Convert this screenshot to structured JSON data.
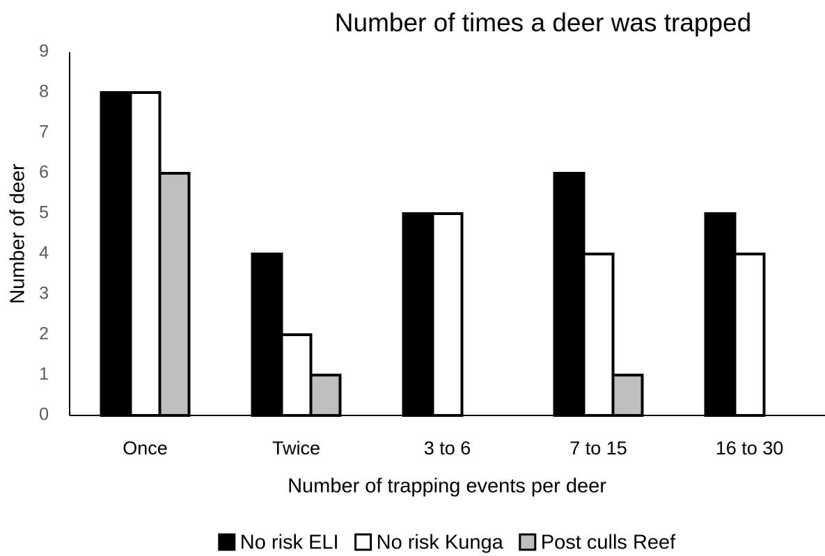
{
  "chart_data": {
    "type": "bar",
    "title": "Number of times a deer was trapped",
    "x_label": "Number of trapping events per deer",
    "y_label": "Number of deer",
    "categories": [
      "Once",
      "Twice",
      "3 to 6",
      "7 to 15",
      "16 to 30"
    ],
    "series": [
      {
        "name": "No risk ELI",
        "color": "#000000",
        "values": [
          8,
          4,
          5,
          6,
          5
        ]
      },
      {
        "name": "No risk Kunga",
        "color": "#ffffff",
        "values": [
          8,
          2,
          5,
          4,
          4
        ]
      },
      {
        "name": "Post culls Reef",
        "color": "#bfbfbf",
        "values": [
          6,
          1,
          0,
          1,
          0
        ]
      }
    ],
    "ylim": [
      0,
      9
    ],
    "yticks": [
      0,
      1,
      2,
      3,
      4,
      5,
      6,
      7,
      8,
      9
    ],
    "grid": false,
    "legend": "bottom"
  }
}
